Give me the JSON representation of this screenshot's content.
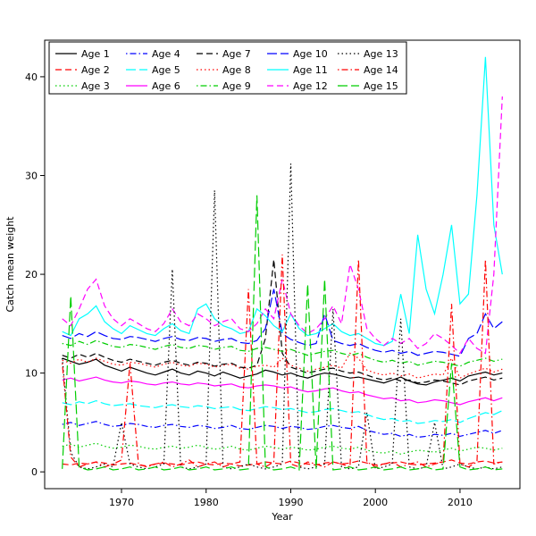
{
  "chart_data": {
    "type": "line",
    "title": "",
    "xlabel": "Year",
    "ylabel": "Catch mean weight",
    "xlim": [
      1963,
      2015
    ],
    "ylim": [
      0,
      42
    ],
    "xticks": [
      1970,
      1980,
      1990,
      2000,
      2010
    ],
    "yticks": [
      0,
      10,
      20,
      30,
      40
    ],
    "grid": false,
    "legend_position": "top-left-inside",
    "legend_ncol": 5,
    "x": [
      1963,
      1964,
      1965,
      1966,
      1967,
      1968,
      1969,
      1970,
      1971,
      1972,
      1973,
      1974,
      1975,
      1976,
      1977,
      1978,
      1979,
      1980,
      1981,
      1982,
      1983,
      1984,
      1985,
      1986,
      1987,
      1988,
      1989,
      1990,
      1991,
      1992,
      1993,
      1994,
      1995,
      1996,
      1997,
      1998,
      1999,
      2000,
      2001,
      2002,
      2003,
      2004,
      2005,
      2006,
      2007,
      2008,
      2009,
      2010,
      2011,
      2012,
      2013,
      2014,
      2015
    ],
    "series": [
      {
        "name": "Age 1",
        "color": "#000000",
        "linetype": "solid",
        "values": [
          11.5,
          11.2,
          10.9,
          11.1,
          11.4,
          10.8,
          10.5,
          10.2,
          10.6,
          10.3,
          10.0,
          9.8,
          10.1,
          10.4,
          10.0,
          9.8,
          10.2,
          10.0,
          9.7,
          10.1,
          9.8,
          9.5,
          9.7,
          9.9,
          10.3,
          10.1,
          9.8,
          10.0,
          9.7,
          9.5,
          9.8,
          10.0,
          9.9,
          9.7,
          9.5,
          9.6,
          9.4,
          9.2,
          9.0,
          9.3,
          9.6,
          9.2,
          8.9,
          8.8,
          9.1,
          9.3,
          9.5,
          9.2,
          9.7,
          9.9,
          10.1,
          9.8,
          10.0
        ]
      },
      {
        "name": "Age 2",
        "color": "#FF0000",
        "linetype": "dashed",
        "values": [
          0.8,
          0.7,
          0.9,
          0.8,
          1.0,
          0.9,
          0.7,
          0.8,
          0.9,
          0.7,
          0.6,
          0.8,
          0.9,
          0.8,
          0.7,
          0.9,
          1.0,
          0.8,
          0.7,
          0.9,
          0.8,
          0.6,
          0.7,
          0.8,
          1.0,
          0.9,
          0.8,
          1.1,
          0.9,
          0.8,
          0.7,
          0.9,
          1.0,
          0.8,
          0.9,
          1.1,
          0.9,
          0.7,
          0.8,
          0.9,
          1.0,
          0.8,
          0.7,
          0.8,
          0.9,
          1.0,
          1.2,
          0.9,
          0.8,
          1.0,
          1.1,
          0.9,
          1.0
        ]
      },
      {
        "name": "Age 3",
        "color": "#00CD00",
        "linetype": "dotted",
        "values": [
          2.6,
          2.8,
          2.5,
          2.7,
          2.9,
          2.6,
          2.4,
          2.5,
          2.7,
          2.6,
          2.4,
          2.3,
          2.5,
          2.6,
          2.4,
          2.5,
          2.7,
          2.5,
          2.3,
          2.4,
          2.6,
          2.3,
          2.2,
          2.4,
          2.6,
          2.5,
          2.3,
          2.5,
          2.4,
          2.2,
          2.3,
          2.5,
          2.6,
          2.4,
          2.3,
          2.5,
          2.2,
          2.0,
          1.9,
          2.1,
          1.8,
          2.0,
          2.2,
          2.1,
          2.0,
          2.2,
          2.4,
          2.1,
          2.3,
          2.5,
          2.4,
          2.2,
          2.4
        ]
      },
      {
        "name": "Age 4",
        "color": "#0000FF",
        "linetype": "dotdash",
        "values": [
          4.8,
          5.0,
          4.7,
          4.9,
          5.1,
          4.8,
          4.6,
          4.7,
          4.9,
          4.8,
          4.6,
          4.5,
          4.7,
          4.8,
          4.6,
          4.5,
          4.7,
          4.6,
          4.4,
          4.5,
          4.7,
          4.4,
          4.3,
          4.5,
          4.7,
          4.6,
          4.4,
          4.6,
          4.5,
          4.3,
          4.4,
          4.6,
          4.7,
          4.5,
          4.4,
          4.6,
          4.2,
          4.0,
          3.8,
          3.9,
          3.6,
          3.8,
          3.5,
          3.6,
          3.8,
          3.7,
          3.9,
          3.6,
          3.8,
          4.0,
          4.2,
          3.9,
          4.2
        ]
      },
      {
        "name": "Age 5",
        "color": "#00FFFF",
        "linetype": "longdash",
        "values": [
          7.0,
          6.8,
          7.1,
          6.9,
          7.2,
          6.9,
          6.7,
          6.8,
          6.9,
          6.7,
          6.6,
          6.5,
          6.7,
          6.8,
          6.6,
          6.5,
          6.7,
          6.6,
          6.4,
          6.5,
          6.6,
          6.3,
          6.2,
          6.4,
          6.6,
          6.5,
          6.3,
          6.4,
          6.2,
          6.0,
          6.1,
          6.3,
          6.4,
          6.2,
          6.0,
          6.1,
          5.8,
          5.5,
          5.3,
          5.4,
          5.1,
          5.2,
          4.9,
          5.0,
          5.2,
          5.1,
          5.3,
          5.0,
          5.4,
          5.7,
          6.0,
          5.8,
          6.2
        ]
      },
      {
        "name": "Age 6",
        "color": "#FF00FF",
        "linetype": "solid",
        "values": [
          9.3,
          9.5,
          9.2,
          9.4,
          9.6,
          9.3,
          9.1,
          9.0,
          9.2,
          9.1,
          8.9,
          8.8,
          9.0,
          9.1,
          8.9,
          8.8,
          9.0,
          8.9,
          8.7,
          8.8,
          8.9,
          8.6,
          8.5,
          8.7,
          8.8,
          8.7,
          8.5,
          8.6,
          8.3,
          8.1,
          8.2,
          8.4,
          8.5,
          8.2,
          8.0,
          8.1,
          7.8,
          7.6,
          7.4,
          7.5,
          7.2,
          7.3,
          7.0,
          7.1,
          7.3,
          7.2,
          7.0,
          6.8,
          7.1,
          7.3,
          7.5,
          7.2,
          7.5
        ]
      },
      {
        "name": "Age 7",
        "color": "#000000",
        "linetype": "dashed",
        "values": [
          11.8,
          11.5,
          11.9,
          11.6,
          12.0,
          11.6,
          11.3,
          11.1,
          11.4,
          11.2,
          11.0,
          10.8,
          11.1,
          11.3,
          11.0,
          10.8,
          11.1,
          11.0,
          10.7,
          10.9,
          11.0,
          10.6,
          10.5,
          10.8,
          13.5,
          21.5,
          12.0,
          10.6,
          10.3,
          10.0,
          10.2,
          10.4,
          10.5,
          10.2,
          10.0,
          10.1,
          9.8,
          9.5,
          9.3,
          9.5,
          9.2,
          9.3,
          9.0,
          9.1,
          9.3,
          9.2,
          9.0,
          8.8,
          9.2,
          9.4,
          9.6,
          9.3,
          9.5
        ]
      },
      {
        "name": "Age 8",
        "color": "#FF0000",
        "linetype": "dotted",
        "values": [
          11.3,
          11.0,
          11.4,
          11.1,
          11.5,
          11.2,
          10.9,
          10.8,
          11.1,
          11.0,
          10.8,
          10.6,
          10.9,
          11.1,
          10.8,
          10.7,
          11.0,
          10.9,
          10.6,
          10.8,
          10.9,
          10.5,
          10.4,
          10.7,
          10.8,
          10.6,
          11.5,
          10.8,
          10.5,
          10.2,
          10.4,
          10.6,
          10.8,
          10.5,
          12.0,
          11.5,
          10.3,
          10.0,
          9.8,
          10.0,
          9.7,
          9.9,
          9.5,
          9.7,
          9.9,
          9.8,
          11.5,
          9.5,
          9.9,
          10.2,
          10.5,
          10.1,
          10.4
        ]
      },
      {
        "name": "Age 9",
        "color": "#00CD00",
        "linetype": "dotdash",
        "values": [
          13.0,
          12.8,
          13.2,
          12.9,
          13.3,
          13.0,
          12.7,
          12.6,
          12.9,
          12.8,
          12.6,
          12.4,
          12.7,
          12.9,
          12.6,
          12.5,
          12.8,
          12.7,
          12.4,
          12.6,
          12.7,
          12.3,
          12.2,
          12.5,
          12.6,
          12.4,
          12.2,
          12.4,
          12.1,
          11.8,
          12.0,
          12.2,
          12.3,
          12.0,
          11.8,
          12.0,
          11.6,
          11.3,
          11.1,
          11.3,
          11.0,
          11.2,
          10.8,
          11.0,
          11.2,
          11.1,
          10.9,
          10.7,
          11.1,
          11.3,
          11.5,
          11.2,
          11.4
        ]
      },
      {
        "name": "Age 10",
        "color": "#0000FF",
        "linetype": "longdash",
        "values": [
          13.8,
          13.5,
          14.0,
          13.7,
          14.2,
          13.8,
          13.5,
          13.4,
          13.7,
          13.6,
          13.4,
          13.2,
          13.5,
          13.7,
          13.4,
          13.3,
          13.6,
          13.5,
          13.2,
          13.4,
          13.5,
          13.1,
          13.0,
          13.3,
          14.5,
          18.5,
          14.0,
          13.4,
          13.1,
          12.8,
          13.0,
          16.0,
          13.3,
          13.0,
          12.8,
          13.0,
          12.6,
          12.3,
          12.1,
          12.3,
          12.0,
          12.2,
          11.8,
          12.0,
          12.2,
          12.1,
          11.9,
          11.7,
          13.5,
          14.0,
          16.0,
          14.5,
          15.2
        ]
      },
      {
        "name": "Age 11",
        "color": "#00FFFF",
        "linetype": "solid",
        "values": [
          14.2,
          13.8,
          15.5,
          16.0,
          16.8,
          15.2,
          14.5,
          14.0,
          14.8,
          14.4,
          14.0,
          13.8,
          14.5,
          15.0,
          14.3,
          14.0,
          16.5,
          17.0,
          15.5,
          14.8,
          14.5,
          14.0,
          14.2,
          16.5,
          15.8,
          14.8,
          14.2,
          16.0,
          14.5,
          13.8,
          14.0,
          14.5,
          15.0,
          14.2,
          13.8,
          14.0,
          13.5,
          13.0,
          12.8,
          13.2,
          18.0,
          14.0,
          24.0,
          18.5,
          16.0,
          20.0,
          25.0,
          17.0,
          18.0,
          28.0,
          42.0,
          25.0,
          20.0
        ]
      },
      {
        "name": "Age 12",
        "color": "#FF00FF",
        "linetype": "dashed",
        "values": [
          15.5,
          14.8,
          16.5,
          18.5,
          19.5,
          16.8,
          15.5,
          14.8,
          15.5,
          15.0,
          14.5,
          14.2,
          15.0,
          16.5,
          15.2,
          14.8,
          16.0,
          15.5,
          14.8,
          15.2,
          15.5,
          14.5,
          14.2,
          15.0,
          16.5,
          15.5,
          19.5,
          16.0,
          14.8,
          14.0,
          14.5,
          15.5,
          16.8,
          15.0,
          21.0,
          18.5,
          14.5,
          13.5,
          12.8,
          13.5,
          13.0,
          13.5,
          12.5,
          13.0,
          14.0,
          13.5,
          12.8,
          12.0,
          13.5,
          12.5,
          12.0,
          20.0,
          38.0
        ]
      },
      {
        "name": "Age 13",
        "color": "#000000",
        "linetype": "dotted",
        "values": [
          11.5,
          2.0,
          0.5,
          0.3,
          0.5,
          0.8,
          0.5,
          5.0,
          0.8,
          0.5,
          0.3,
          0.5,
          0.8,
          20.5,
          0.5,
          0.3,
          0.5,
          0.8,
          28.5,
          0.5,
          0.3,
          0.5,
          0.8,
          0.5,
          0.3,
          0.5,
          0.8,
          31.2,
          0.5,
          0.3,
          0.5,
          0.8,
          16.5,
          0.5,
          0.3,
          0.5,
          6.0,
          0.3,
          0.5,
          0.8,
          15.5,
          0.5,
          0.3,
          0.5,
          5.0,
          0.3,
          0.5,
          0.8,
          0.5,
          0.3,
          0.5,
          0.3,
          0.5
        ]
      },
      {
        "name": "Age 14",
        "color": "#FF0000",
        "linetype": "dotdash",
        "values": [
          11.0,
          1.5,
          0.5,
          0.8,
          1.0,
          0.5,
          0.8,
          1.2,
          11.0,
          0.8,
          0.5,
          0.8,
          1.0,
          0.5,
          0.8,
          1.2,
          0.5,
          0.8,
          1.0,
          0.5,
          0.8,
          1.0,
          18.5,
          0.8,
          0.5,
          1.0,
          22.0,
          0.8,
          0.5,
          1.0,
          0.8,
          0.5,
          1.0,
          0.8,
          0.5,
          21.5,
          1.0,
          0.5,
          0.8,
          1.0,
          0.5,
          0.8,
          1.0,
          0.5,
          0.8,
          1.0,
          17.0,
          0.8,
          0.5,
          1.0,
          21.5,
          0.8,
          1.0
        ]
      },
      {
        "name": "Age 15",
        "color": "#00CD00",
        "linetype": "longdash",
        "values": [
          0.3,
          17.8,
          0.5,
          0.2,
          0.3,
          0.5,
          0.2,
          0.3,
          0.5,
          0.2,
          0.3,
          0.5,
          0.2,
          0.3,
          0.5,
          0.2,
          0.3,
          0.5,
          0.2,
          0.3,
          0.5,
          0.2,
          0.3,
          28.0,
          0.5,
          0.2,
          0.3,
          0.5,
          0.2,
          19.0,
          0.3,
          19.5,
          0.2,
          0.3,
          0.5,
          0.2,
          0.3,
          0.5,
          0.2,
          0.3,
          0.5,
          0.2,
          0.3,
          0.5,
          0.2,
          0.3,
          11.0,
          0.5,
          0.2,
          0.3,
          0.5,
          0.2,
          0.3
        ]
      }
    ]
  }
}
